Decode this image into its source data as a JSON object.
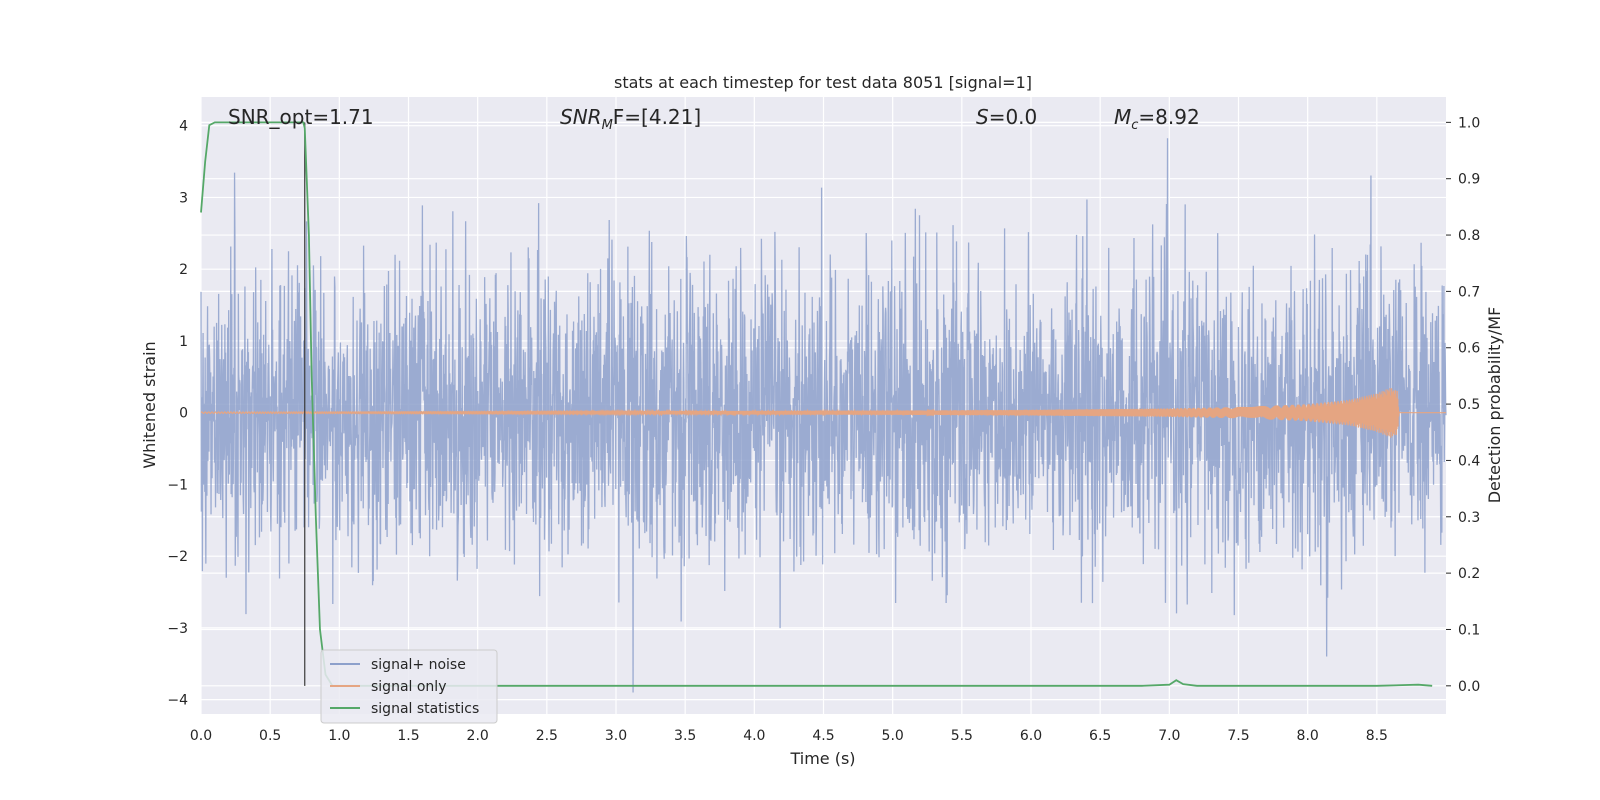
{
  "chart_data": {
    "type": "line",
    "title": "stats at each timestep for test data 8051 [signal=1]",
    "xlabel": "Time (s)",
    "ylabel": "Whitened strain",
    "y2label": "Detection probability/MF",
    "xlim": [
      0.0,
      9.0
    ],
    "ylim": [
      -4.2,
      4.4
    ],
    "y2lim": [
      -0.05,
      1.045
    ],
    "xticks": [
      "0.0",
      "0.5",
      "1.0",
      "1.5",
      "2.0",
      "2.5",
      "3.0",
      "3.5",
      "4.0",
      "4.5",
      "5.0",
      "5.5",
      "6.0",
      "6.5",
      "7.0",
      "7.5",
      "8.0",
      "8.5"
    ],
    "yticks": [
      "4",
      "3",
      "2",
      "1",
      "0",
      "−1",
      "−2",
      "−3",
      "−4"
    ],
    "y2ticks": [
      "1.0",
      "0.9",
      "0.8",
      "0.7",
      "0.6",
      "0.5",
      "0.4",
      "0.3",
      "0.2",
      "0.1",
      "0.0"
    ],
    "grid": true,
    "legend_placement": "lower-left",
    "annotations": [
      {
        "pre": "SNR_opt=1.71",
        "italic": "",
        "sub": "",
        "post": ""
      },
      {
        "pre": "",
        "italic": "SNR",
        "sub": "M",
        "post": "F=[4.21]"
      },
      {
        "pre": "",
        "italic": "S",
        "sub": "",
        "post": "=0.0"
      },
      {
        "pre": "",
        "italic": "M",
        "sub": "c",
        "post": "=8.92"
      }
    ],
    "vline_x": 0.75,
    "series": [
      {
        "name": "signal+ noise",
        "color": "#8da0cb",
        "axis": "left",
        "noise_rms": 1.0,
        "peak_max": 4.0,
        "peak_min": -3.9
      },
      {
        "name": "signal only",
        "color": "#e5a582",
        "axis": "left",
        "envelope": [
          [
            0.0,
            0.01
          ],
          [
            3.0,
            0.02
          ],
          [
            5.0,
            0.03
          ],
          [
            6.0,
            0.04
          ],
          [
            7.0,
            0.06
          ],
          [
            7.5,
            0.08
          ],
          [
            8.0,
            0.12
          ],
          [
            8.3,
            0.18
          ],
          [
            8.5,
            0.27
          ],
          [
            8.6,
            0.35
          ],
          [
            8.65,
            0.3
          ],
          [
            8.66,
            0.0
          ]
        ]
      },
      {
        "name": "signal statistics",
        "color": "#55a868",
        "axis": "right",
        "x": [
          0.0,
          0.03,
          0.06,
          0.1,
          0.15,
          0.2,
          0.3,
          0.4,
          0.5,
          0.6,
          0.7,
          0.74,
          0.75,
          0.78,
          0.8,
          0.83,
          0.86,
          0.9,
          0.95,
          1.0,
          1.5,
          2.0,
          3.0,
          4.0,
          5.0,
          6.0,
          6.8,
          7.0,
          7.05,
          7.1,
          7.2,
          8.0,
          8.5,
          8.8,
          8.9
        ],
        "y": [
          0.84,
          0.93,
          0.995,
          1.0,
          1.0,
          1.0,
          1.0,
          1.0,
          1.0,
          1.0,
          1.0,
          1.0,
          0.99,
          0.8,
          0.55,
          0.3,
          0.1,
          0.02,
          0.0,
          0.0,
          0.0,
          0.0,
          0.0,
          0.0,
          0.0,
          0.0,
          0.0,
          0.002,
          0.01,
          0.003,
          0.0,
          0.0,
          0.0,
          0.002,
          0.0
        ]
      }
    ]
  }
}
